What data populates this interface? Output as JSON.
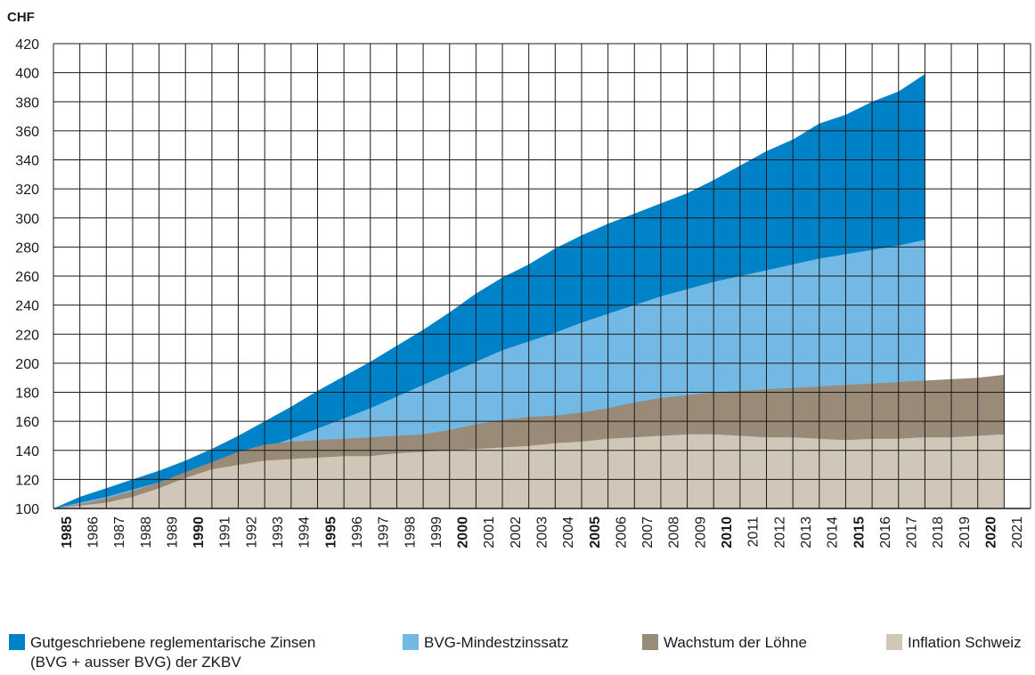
{
  "chart_data": {
    "type": "area",
    "ylabel": "CHF",
    "ylim": [
      100,
      420
    ],
    "yticks": [
      100,
      120,
      140,
      160,
      180,
      200,
      220,
      240,
      260,
      280,
      300,
      320,
      340,
      360,
      380,
      400,
      420
    ],
    "grid": true,
    "stacked": false,
    "x": [
      1985,
      1986,
      1987,
      1988,
      1989,
      1990,
      1991,
      1992,
      1993,
      1994,
      1995,
      1996,
      1997,
      1998,
      1999,
      2000,
      2001,
      2002,
      2003,
      2004,
      2005,
      2006,
      2007,
      2008,
      2009,
      2010,
      2011,
      2012,
      2013,
      2014,
      2015,
      2016,
      2017,
      2018,
      2019,
      2020,
      2021
    ],
    "bold_years": [
      1985,
      1990,
      1995,
      2000,
      2005,
      2010,
      2015,
      2020
    ],
    "legend_position": "bottom",
    "series": [
      {
        "name": "Gutgeschriebene reglementarische Zinsen\n(BVG + ausser BVG) der ZKBV",
        "color": "#0082c8",
        "values": [
          100,
          108,
          114,
          120,
          126,
          133,
          141,
          150,
          160,
          170,
          181,
          191,
          201,
          212,
          223,
          235,
          248,
          259,
          268,
          279,
          288,
          296,
          303,
          310,
          317,
          326,
          336,
          346,
          354,
          365,
          371,
          380,
          387,
          399,
          null,
          null,
          null
        ]
      },
      {
        "name": "BVG-Mindestzinssatz",
        "color": "#73b9e5",
        "values": [
          100,
          104,
          108,
          113,
          118,
          124,
          130,
          136,
          142,
          148,
          155,
          162,
          169,
          177,
          185,
          193,
          201,
          209,
          215,
          221,
          228,
          234,
          240,
          246,
          251,
          256,
          260,
          264,
          268,
          272,
          275,
          278,
          281,
          285,
          null,
          null,
          null
        ]
      },
      {
        "name": "Wachstum der Löhne",
        "color": "#9a8b78",
        "values": [
          100,
          103,
          107,
          112,
          118,
          125,
          132,
          139,
          144,
          146,
          147,
          148,
          149,
          150,
          151,
          154,
          158,
          161,
          163,
          164,
          166,
          169,
          173,
          176,
          178,
          180,
          181,
          182,
          183,
          184,
          185,
          186,
          187,
          188,
          189,
          190,
          192
        ]
      },
      {
        "name": "Inflation Schweiz",
        "color": "#d1c7b8",
        "values": [
          100,
          102,
          104,
          108,
          114,
          121,
          127,
          130,
          133,
          134,
          135,
          136,
          136,
          138,
          139,
          140,
          141,
          142,
          143,
          145,
          146,
          148,
          149,
          150,
          151,
          151,
          150,
          149,
          149,
          148,
          147,
          148,
          148,
          149,
          149,
          150,
          151
        ]
      }
    ]
  }
}
